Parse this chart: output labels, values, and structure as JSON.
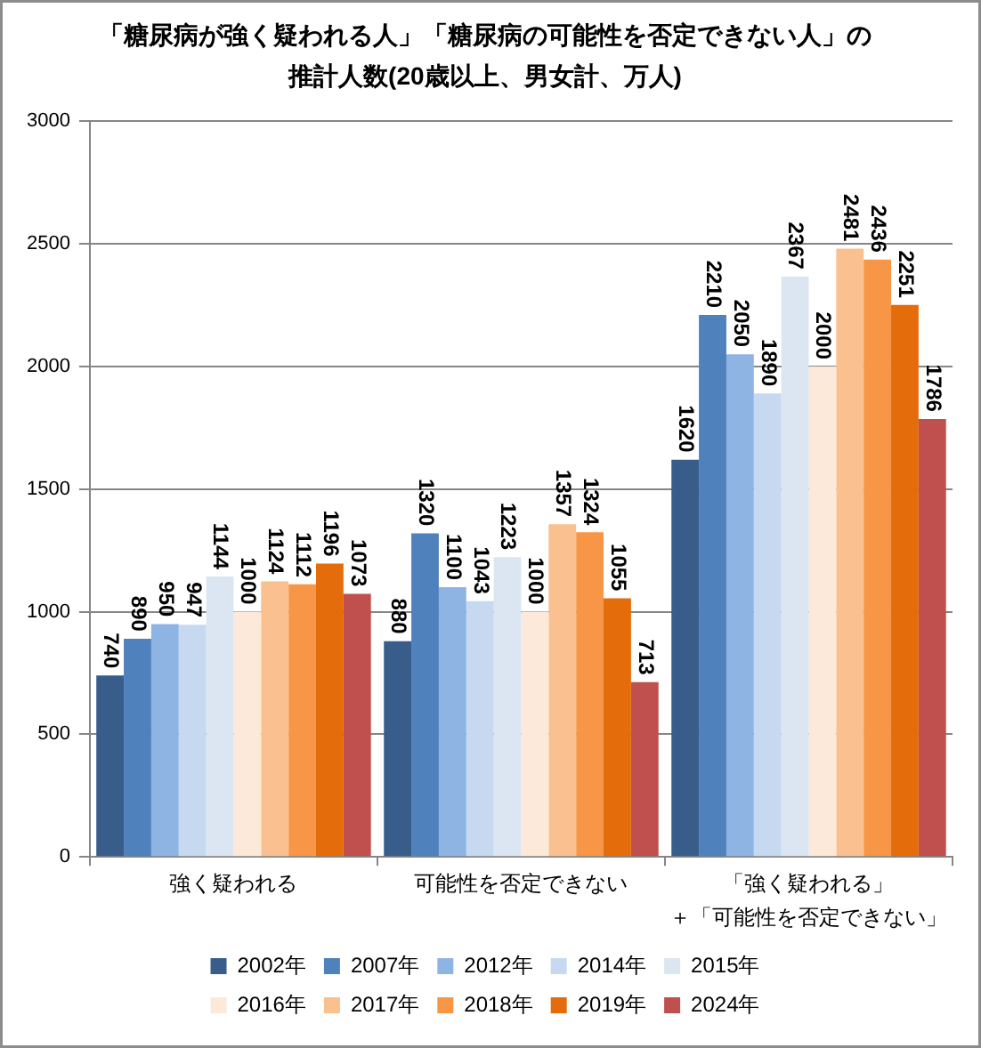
{
  "chart_data": {
    "type": "bar",
    "title": "「糖尿病が強く疑われる人」「糖尿病の可能性を否定できない人」の推計人数(20歳以上、男女計、万人)",
    "categories": [
      "強く疑われる",
      "可能性を否定できない",
      "「強く疑われる」＋「可能性を否定できない」"
    ],
    "series": [
      {
        "name": "2002年",
        "color": "#385d8a",
        "values": [
          740,
          880,
          1620
        ]
      },
      {
        "name": "2007年",
        "color": "#4f81bd",
        "values": [
          890,
          1320,
          2210
        ]
      },
      {
        "name": "2012年",
        "color": "#8eb4e3",
        "values": [
          950,
          1100,
          2050
        ]
      },
      {
        "name": "2014年",
        "color": "#c6d9f1",
        "values": [
          947,
          1043,
          1890
        ]
      },
      {
        "name": "2015年",
        "color": "#dce6f2",
        "values": [
          1144,
          1223,
          2367
        ]
      },
      {
        "name": "2016年",
        "color": "#fde9d9",
        "values": [
          1000,
          1000,
          2000
        ]
      },
      {
        "name": "2017年",
        "color": "#fac090",
        "values": [
          1124,
          1357,
          2481
        ]
      },
      {
        "name": "2018年",
        "color": "#f79646",
        "values": [
          1112,
          1324,
          2436
        ]
      },
      {
        "name": "2019年",
        "color": "#e46c0a",
        "values": [
          1196,
          1055,
          2251
        ]
      },
      {
        "name": "2024年",
        "color": "#c0504d",
        "values": [
          1073,
          713,
          1786
        ]
      }
    ],
    "ylim": [
      0,
      3000
    ],
    "yticks": [
      0,
      500,
      1000,
      1500,
      2000,
      2500,
      3000
    ],
    "grid": "y",
    "legend": "bottom",
    "data_labels": true
  }
}
